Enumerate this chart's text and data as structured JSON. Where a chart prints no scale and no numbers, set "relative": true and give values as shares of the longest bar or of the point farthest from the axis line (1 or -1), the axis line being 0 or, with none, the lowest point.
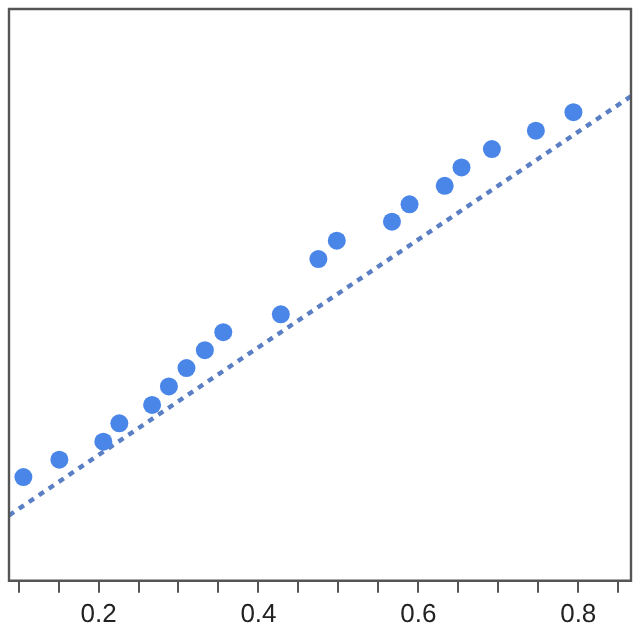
{
  "chart_data": {
    "type": "scatter",
    "relative": true,
    "marker": "circle",
    "xlim": [
      0.088,
      0.866
    ],
    "xticks": [
      {
        "value": 0.1,
        "label": null
      },
      {
        "value": 0.15,
        "label": null
      },
      0.2,
      {
        "value": 0.25,
        "label": null
      },
      {
        "value": 0.3,
        "label": null
      },
      {
        "value": 0.35,
        "label": null
      },
      0.4,
      {
        "value": 0.45,
        "label": null
      },
      {
        "value": 0.5,
        "label": null
      },
      {
        "value": 0.55,
        "label": null
      },
      0.6,
      {
        "value": 0.65,
        "label": null
      },
      {
        "value": 0.7,
        "label": null
      },
      {
        "value": 0.75,
        "label": null
      },
      0.8,
      {
        "value": 0.85,
        "label": null
      }
    ],
    "grid": false,
    "series": [
      {
        "color": "#4a86e8",
        "x": [
          0.106,
          0.151,
          0.206,
          0.226,
          0.267,
          0.288,
          0.31,
          0.333,
          0.356,
          0.428,
          0.475,
          0.498,
          0.567,
          0.589,
          0.633,
          0.654,
          0.692,
          0.747,
          0.794
        ],
        "values": [
          0.214,
          0.25,
          0.287,
          0.325,
          0.363,
          0.401,
          0.439,
          0.476,
          0.513,
          0.55,
          0.664,
          0.702,
          0.741,
          0.777,
          0.815,
          0.853,
          0.891,
          0.929,
          0.967
        ]
      },
      {
        "type": "line",
        "color": "#5b7fc4",
        "line_style": "dotted",
        "marker": "none",
        "x": [
          0.088,
          0.866
        ],
        "values": [
          0.135,
          1
        ]
      }
    ]
  }
}
